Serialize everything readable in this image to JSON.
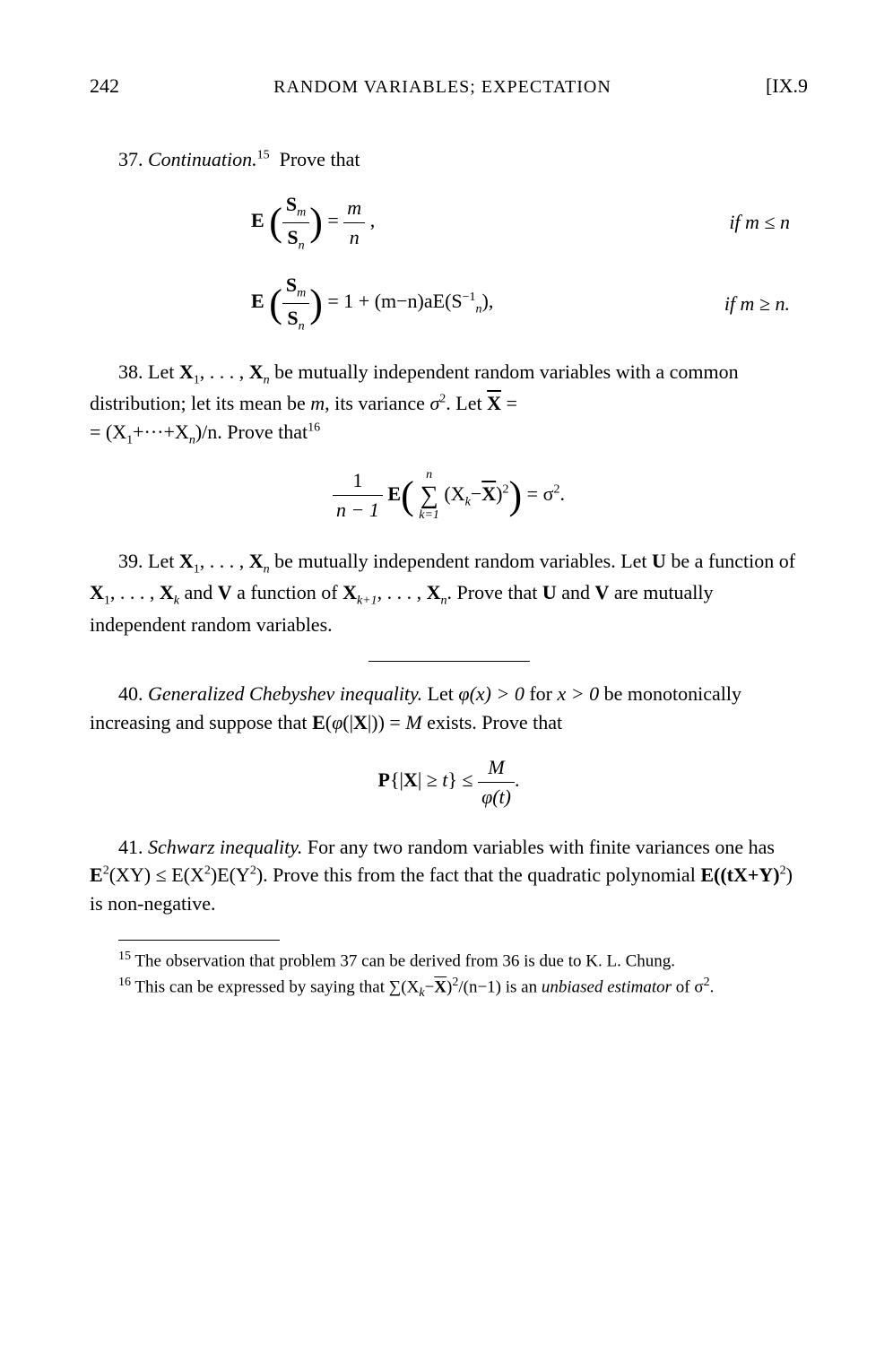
{
  "header": {
    "page_number": "242",
    "chapter_title": "RANDOM VARIABLES; EXPECTATION",
    "section_ref": "[IX.9"
  },
  "problems": {
    "p37": {
      "number": "37.",
      "title": "Continuation.",
      "footnote_ref": "15",
      "text": "Prove that",
      "eq1_lhs": "E",
      "eq1_frac_num": "S",
      "eq1_sub_m": "m",
      "eq1_frac_den": "S",
      "eq1_sub_n": "n",
      "eq1_rhs_num": "m",
      "eq1_rhs_den": "n",
      "eq1_cond": "if  m ≤ n",
      "eq2_rhs": " = 1 + (m−n)aE(S",
      "eq2_exp": "−1",
      "eq2_sub": "n",
      "eq2_tail": "),",
      "eq2_cond": "if  m ≥ n.",
      "comma": " ,"
    },
    "p38": {
      "number": "38.",
      "text1": "Let ",
      "text2": " be mutually independent random variables with a common distribution; let its mean be ",
      "text3": ", its variance ",
      "text4": ". Let ",
      "text5": " = ",
      "text6": ". Prove that",
      "footnote_ref": "16",
      "vars": "X",
      "sub1": "1",
      "subn": "n",
      "mean": "m",
      "variance": "σ",
      "var_exp": "2",
      "xbar": "X̄",
      "xsum": "= (X",
      "plus": "+···+X",
      "divn": ")/n",
      "sigma2": "σ",
      "eq_num": "1",
      "eq_den": "n − 1",
      "eq_E": " E",
      "sum_top": "n",
      "sum_bot": "k=1",
      "sum_body": " (X",
      "sum_k": "k",
      "minus": "−",
      "sq": "2",
      "equals": " = σ",
      "period": "."
    },
    "p39": {
      "number": "39.",
      "text1": "Let ",
      "text2": " be mutually independent random variables. Let ",
      "text3": " be a function of ",
      "text4": " and ",
      "text5": " a function of ",
      "text6": ". Prove that ",
      "text7": " and ",
      "text8": " are mutually independent random variables.",
      "U": "U",
      "V": "V",
      "vars1": "X",
      "sub1": "1",
      "subk": "k",
      "subk1": "k+1",
      "subn": "n"
    },
    "p40": {
      "number": "40.",
      "title": "Generalized Chebyshev inequality.",
      "text1": "Let ",
      "text2": " for ",
      "text3": " be monotonically increasing and suppose that ",
      "text4": " exists. Prove that",
      "phi": "φ(x) > 0",
      "xcond": "x > 0",
      "expectation": "E(φ(|X|)) = M",
      "eq_P": "P{|X| ≥ t} ≤ ",
      "eq_num": "M",
      "eq_den": "φ(t)",
      "period": "."
    },
    "p41": {
      "number": "41.",
      "title": "Schwarz inequality.",
      "text1": "For any two random variables with finite variances one has ",
      "text2": ". Prove this from the fact that the quadratic polynomial ",
      "text3": " is non-negative.",
      "ineq": "E",
      "ineq_sup": "2",
      "ineq_body": "(XY) ≤ E(X",
      "ineq_sup2": "2",
      "ineq_body2": ")E(Y",
      "ineq_sup3": "2",
      "ineq_body3": ")",
      "poly": "E((tX+Y)",
      "poly_sup": "2",
      "poly_end": ")"
    }
  },
  "footnotes": {
    "f15": {
      "ref": "15",
      "text": " The observation that problem 37 can be derived from 36 is due to K. L. Chung."
    },
    "f16": {
      "ref": "16",
      "text1": " This can be expressed by saying that ",
      "formula": "∑(X",
      "sub_k": "k",
      "minus": "−",
      "xbar": "X̄",
      "sq": "2",
      "div": "/(n−1)",
      "text2": " is an ",
      "italic": "unbiased estimator",
      "text3": " of σ",
      "sigma_sup": "2",
      "period": "."
    }
  }
}
